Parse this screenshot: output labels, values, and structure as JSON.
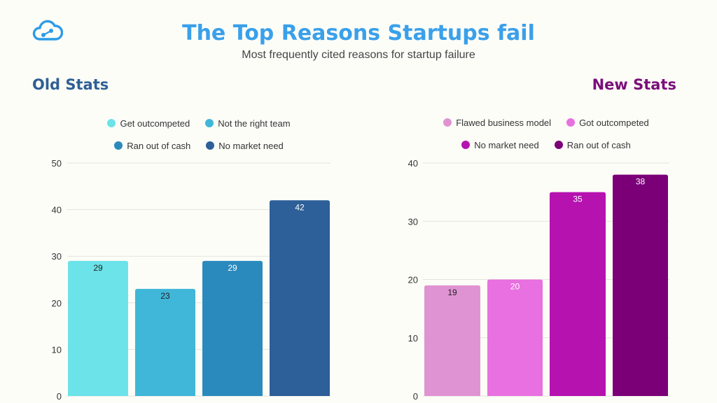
{
  "header": {
    "title": "The Top Reasons Startups fail",
    "subtitle": "Most frequently cited reasons for startup failure",
    "logo_icon": "cloud-network-icon"
  },
  "chart_data": [
    {
      "type": "bar",
      "section_title": "Old Stats",
      "categories": [
        "Get outcompeted",
        "Not the right team",
        "Ran out of cash",
        "No market need"
      ],
      "values": [
        29,
        23,
        29,
        42
      ],
      "colors": [
        "#6be3e8",
        "#40b6d8",
        "#2b8abd",
        "#2d5f98"
      ],
      "label_colors": [
        "#222222",
        "#222222",
        "#ffffff",
        "#ffffff"
      ],
      "ylim": [
        0,
        50
      ],
      "yticks": [
        0,
        10,
        20,
        30,
        40,
        50
      ],
      "legend_position": "top",
      "grid": true
    },
    {
      "type": "bar",
      "section_title": "New Stats",
      "categories": [
        "Flawed business model",
        "Got outcompeted",
        "No market need",
        "Ran out of cash"
      ],
      "values": [
        19,
        20,
        35,
        38
      ],
      "colors": [
        "#e093d2",
        "#e870e0",
        "#b512b0",
        "#7b0077"
      ],
      "label_colors": [
        "#222222",
        "#ffffff",
        "#ffffff",
        "#ffffff"
      ],
      "ylim": [
        0,
        40
      ],
      "yticks": [
        0,
        10,
        20,
        30,
        40
      ],
      "legend_position": "top",
      "grid": true
    }
  ]
}
